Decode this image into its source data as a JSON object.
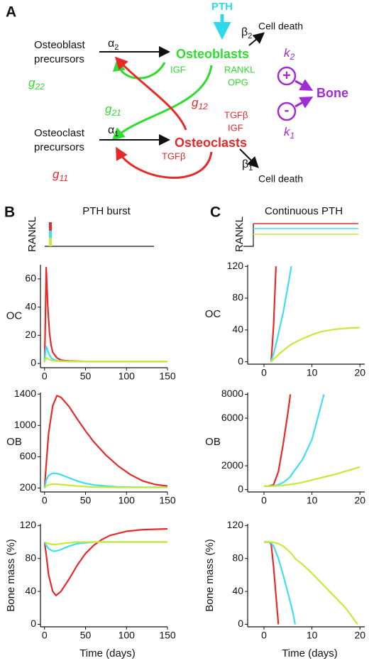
{
  "diagram": {
    "label": "A",
    "pth": "PTH",
    "osteoblast_precursors": [
      "Osteoblast",
      "precursors"
    ],
    "osteoclast_precursors": [
      "Osteoclast",
      "precursors"
    ],
    "alpha2": {
      "symbol": "α",
      "sub": "2"
    },
    "alpha1": {
      "symbol": "α",
      "sub": "1"
    },
    "beta2": {
      "symbol": "β",
      "sub": "2"
    },
    "beta1": {
      "symbol": "β",
      "sub": "1"
    },
    "cell_death_top": "Cell death",
    "cell_death_bottom": "Cell death",
    "osteoblasts": "Osteoblasts",
    "osteoclasts": "Osteoclasts",
    "bone": "Bone",
    "k2": {
      "symbol": "k",
      "sub": "2"
    },
    "k1": {
      "symbol": "k",
      "sub": "1"
    },
    "plus": "+",
    "minus": "-",
    "igf_green": "IGF",
    "rankl": "RANKL",
    "opg": "OPG",
    "tgfb_red": "TGFβ",
    "igf_red": "IGF",
    "tgfb_bottom": "TGFβ",
    "g22": {
      "symbol": "g",
      "sub": "22"
    },
    "g21": {
      "symbol": "g",
      "sub": "21"
    },
    "g12": {
      "symbol": "g",
      "sub": "12"
    },
    "g11": {
      "symbol": "g",
      "sub": "11"
    }
  },
  "panels": [
    {
      "label": "B",
      "title": "PTH burst",
      "input_label": "RANKL"
    },
    {
      "label": "C",
      "title": "Continuous PTH",
      "input_label": "RANKL"
    }
  ],
  "chart_data": [
    {
      "type": "line",
      "ylabel": "OC",
      "x": [
        0,
        1,
        2,
        3,
        4,
        6,
        8,
        10,
        15,
        20,
        25,
        30,
        50,
        100,
        150
      ],
      "series": [
        {
          "color": "#e62a2a",
          "values": [
            1,
            30,
            68,
            55,
            40,
            22,
            13,
            8,
            4,
            2.5,
            2,
            1.8,
            1.5,
            1.5,
            1.5
          ]
        },
        {
          "color": "#3ee0f0",
          "values": [
            1,
            8,
            12,
            11,
            9,
            6,
            4,
            3,
            2,
            1.8,
            1.6,
            1.5,
            1.5,
            1.5,
            1.5
          ]
        },
        {
          "color": "#c8e83a",
          "values": [
            1,
            3,
            4,
            3.8,
            3.4,
            2.8,
            2.3,
            2,
            1.7,
            1.6,
            1.5,
            1.5,
            1.5,
            1.5,
            1.5
          ]
        }
      ],
      "xlim": [
        -5,
        150
      ],
      "xticks": [
        0,
        50,
        100,
        150
      ],
      "ylim": [
        -3,
        70
      ],
      "yticks": [
        0,
        20,
        40,
        60
      ]
    },
    {
      "type": "line",
      "ylabel": "OB",
      "x": [
        0,
        2,
        5,
        10,
        15,
        20,
        30,
        40,
        50,
        60,
        75,
        90,
        105,
        120,
        135,
        150
      ],
      "series": [
        {
          "color": "#e62a2a",
          "values": [
            200,
            500,
            900,
            1250,
            1380,
            1360,
            1240,
            1080,
            930,
            790,
            620,
            480,
            370,
            290,
            245,
            225
          ]
        },
        {
          "color": "#3ee0f0",
          "values": [
            200,
            300,
            360,
            390,
            385,
            370,
            330,
            290,
            260,
            240,
            225,
            215,
            212,
            210,
            210,
            210
          ]
        },
        {
          "color": "#c8e83a",
          "values": [
            200,
            225,
            240,
            250,
            250,
            245,
            235,
            225,
            218,
            213,
            210,
            208,
            207,
            207,
            207,
            207
          ]
        }
      ],
      "xlim": [
        -5,
        150
      ],
      "xticks": [
        0,
        50,
        100,
        150
      ],
      "ylim": [
        150,
        1420
      ],
      "yticks": [
        200,
        600,
        1000,
        1400
      ]
    },
    {
      "type": "line",
      "ylabel": "Bone mass (%)",
      "xlabel": "Time (days)",
      "x": [
        0,
        2,
        5,
        10,
        14,
        20,
        30,
        40,
        50,
        60,
        70,
        80,
        100,
        120,
        150
      ],
      "series": [
        {
          "color": "#e62a2a",
          "values": [
            100,
            85,
            60,
            40,
            35,
            40,
            55,
            72,
            86,
            96,
            103,
            108,
            113,
            115,
            116
          ]
        },
        {
          "color": "#3ee0f0",
          "values": [
            100,
            96,
            92,
            89,
            89,
            91,
            95,
            98,
            99,
            100,
            100,
            100,
            100,
            100,
            100
          ]
        },
        {
          "color": "#c8e83a",
          "values": [
            100,
            99,
            98,
            97,
            97,
            98,
            99,
            100,
            100,
            100,
            100,
            100,
            100,
            100,
            100
          ]
        }
      ],
      "xlim": [
        -5,
        150
      ],
      "xticks": [
        0,
        50,
        100,
        150
      ],
      "ylim": [
        -3,
        122
      ],
      "yticks": [
        0,
        40,
        80,
        120
      ]
    },
    {
      "type": "line",
      "ylabel": "OC",
      "x": [
        1.5,
        2,
        2.5,
        3,
        4,
        5,
        5.7,
        8,
        10,
        12,
        15,
        18,
        20
      ],
      "series": [
        {
          "color": "#e62a2a",
          "values": [
            0,
            45,
            120,
            null,
            null,
            null,
            null,
            null,
            null,
            null,
            null,
            null,
            null
          ]
        },
        {
          "color": "#3ee0f0",
          "values": [
            0,
            10,
            22,
            35,
            62,
            95,
            120,
            null,
            null,
            null,
            null,
            null,
            null
          ]
        },
        {
          "color": "#c8e83a",
          "values": [
            0,
            3,
            6,
            9,
            14,
            19,
            22,
            29,
            34,
            38,
            41,
            42.5,
            43
          ]
        }
      ],
      "xlim": [
        -3.4,
        21
      ],
      "xticks": [
        0,
        10,
        20
      ],
      "ylim": [
        -3,
        122
      ],
      "yticks": [
        0,
        40,
        80,
        120
      ]
    },
    {
      "type": "line",
      "ylabel": "OB",
      "x": [
        0,
        1,
        2,
        3,
        4,
        5,
        5.5,
        6,
        8,
        10,
        12.5,
        15,
        20
      ],
      "series": [
        {
          "color": "#e62a2a",
          "values": [
            300,
            300,
            400,
            1500,
            3800,
            6500,
            8000,
            null,
            null,
            null,
            null,
            null,
            null
          ]
        },
        {
          "color": "#3ee0f0",
          "values": [
            300,
            300,
            300,
            400,
            600,
            900,
            1100,
            1400,
            2500,
            4200,
            8000,
            null,
            null
          ]
        },
        {
          "color": "#c8e83a",
          "values": [
            300,
            300,
            300,
            320,
            360,
            400,
            430,
            460,
            600,
            800,
            1050,
            1300,
            1900
          ]
        }
      ],
      "xlim": [
        -3.4,
        21
      ],
      "xticks": [
        0,
        10,
        20
      ],
      "ylim": [
        -200,
        8150
      ],
      "yticks": [
        0,
        2000,
        6000,
        8000
      ]
    },
    {
      "type": "line",
      "ylabel": "Bone mass (%)",
      "xlabel": "Time (days)",
      "x": [
        0,
        1,
        1.5,
        2,
        3,
        4,
        5,
        6,
        6.5,
        8,
        10,
        12,
        15,
        17,
        19.5
      ],
      "series": [
        {
          "color": "#e62a2a",
          "values": [
            100,
            100,
            98,
            70,
            0,
            null,
            null,
            null,
            null,
            null,
            null,
            null,
            null,
            null,
            null
          ]
        },
        {
          "color": "#3ee0f0",
          "values": [
            100,
            100,
            99,
            95,
            80,
            60,
            38,
            15,
            0,
            null,
            null,
            null,
            null,
            null,
            null
          ]
        },
        {
          "color": "#c8e83a",
          "values": [
            100,
            100,
            100,
            99.5,
            98,
            95,
            90,
            84,
            80,
            73,
            62,
            50,
            32,
            20,
            0
          ]
        }
      ],
      "xlim": [
        -3.4,
        21
      ],
      "xticks": [
        0,
        10,
        20
      ],
      "ylim": [
        -3,
        122
      ],
      "yticks": [
        0,
        40,
        80,
        120
      ]
    }
  ]
}
